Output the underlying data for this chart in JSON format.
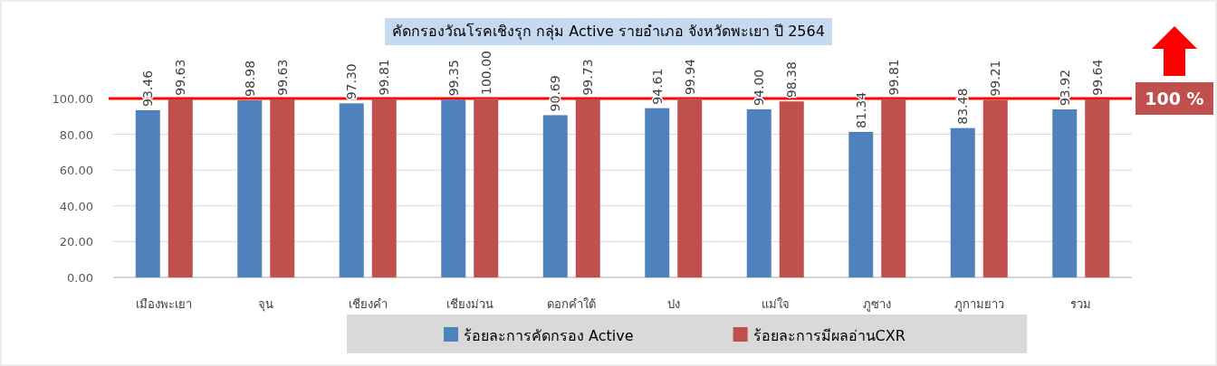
{
  "chart_data": {
    "type": "bar",
    "title": "คัดกรองวัณโรคเชิงรุก กลุ่ม Active รายอำเภอ จังหวัดพะเยา ปี 2564",
    "categories": [
      "เมืองพะเยา",
      "จุน",
      "เชียงคำ",
      "เชียงม่วน",
      "ดอกคำใต้",
      "ปง",
      "แม่ใจ",
      "ภูซาง",
      "ภูกามยาว",
      "รวม"
    ],
    "series": [
      {
        "name": "ร้อยละการคัดกรอง Active",
        "color": "#4f81bd",
        "values": [
          93.46,
          98.98,
          97.3,
          99.35,
          90.69,
          94.61,
          94.0,
          81.34,
          83.48,
          93.92
        ],
        "value_labels": [
          "93.46",
          "98.98",
          "97.30",
          "99.35",
          "90.69",
          "94.61",
          "94.00",
          "81.34",
          "83.48",
          "93.92"
        ]
      },
      {
        "name": "ร้อยละการมีผลอ่านCXR",
        "color": "#c0504d",
        "values": [
          99.63,
          99.63,
          99.81,
          100.0,
          99.73,
          99.94,
          98.38,
          99.81,
          99.21,
          99.64
        ],
        "value_labels": [
          "99.63",
          "99.63",
          "99.81",
          "100.00",
          "99.73",
          "99.94",
          "98.38",
          "99.81",
          "99.21",
          "99.64"
        ]
      }
    ],
    "ylim": [
      0,
      100
    ],
    "yticks": [
      {
        "value": 0,
        "label": "0.00"
      },
      {
        "value": 20,
        "label": "20.00"
      },
      {
        "value": 40,
        "label": "40.00"
      },
      {
        "value": 60,
        "label": "60.00"
      },
      {
        "value": 80,
        "label": "80.00"
      },
      {
        "value": 100,
        "label": "100.00"
      }
    ],
    "grid": "y",
    "legend": "bottom",
    "ref_lines": [
      {
        "axis": "y",
        "value": 100,
        "label": "100 %",
        "color": "#ff0000"
      }
    ]
  }
}
